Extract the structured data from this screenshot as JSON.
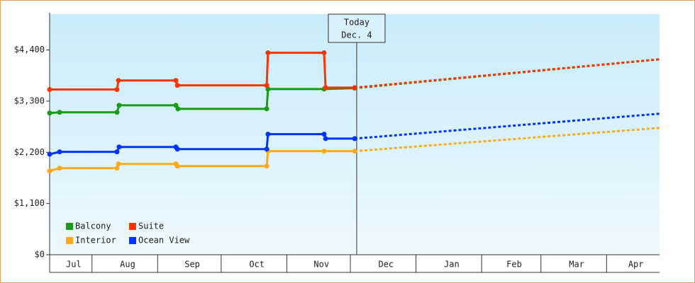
{
  "chart_data": {
    "type": "line",
    "xlim": [
      0,
      288
    ],
    "xticks": [
      {
        "value": 0,
        "label": "Jul"
      },
      {
        "value": 20,
        "label": "Aug"
      },
      {
        "value": 51,
        "label": "Sep"
      },
      {
        "value": 81,
        "label": "Oct"
      },
      {
        "value": 112,
        "label": "Nov"
      },
      {
        "value": 142,
        "label": "Dec"
      },
      {
        "value": 173,
        "label": "Jan"
      },
      {
        "value": 204,
        "label": "Feb"
      },
      {
        "value": 232,
        "label": "Mar"
      },
      {
        "value": 263,
        "label": "Apr"
      }
    ],
    "ylim": [
      0,
      5170
    ],
    "yticks": [
      {
        "value": 0,
        "label": "$0"
      },
      {
        "value": 1100,
        "label": "$1,100"
      },
      {
        "value": 2200,
        "label": "$2,200"
      },
      {
        "value": 3300,
        "label": "$3,300"
      },
      {
        "value": 4400,
        "label": "$4,400"
      }
    ],
    "today": {
      "x": 145,
      "lines": [
        "Today",
        "Dec. 4"
      ]
    },
    "legend": "bottom-left",
    "series": [
      {
        "name": "Balcony",
        "color": "#1a9a1a",
        "x": [
          0,
          4.7,
          31.8,
          32.8,
          59.6,
          60.6,
          102.5,
          103.1,
          129.6,
          144
        ],
        "values": [
          3045,
          3060,
          3060,
          3210,
          3210,
          3135,
          3135,
          3560,
          3560,
          3580
        ],
        "forecast_x": [
          144,
          288
        ],
        "forecast_values": [
          3580,
          4200
        ]
      },
      {
        "name": "Suite",
        "color": "#ff3300",
        "x": [
          0,
          31.8,
          32.5,
          59.6,
          60.3,
          102.5,
          103.1,
          129.6,
          130.3,
          144
        ],
        "values": [
          3550,
          3550,
          3745,
          3745,
          3640,
          3640,
          4340,
          4340,
          3590,
          3590
        ],
        "forecast_x": [
          144,
          288
        ],
        "forecast_values": [
          3590,
          4200
        ]
      },
      {
        "name": "Interior",
        "color": "#ffaa1a",
        "x": [
          0,
          4.7,
          31.8,
          32.5,
          59.6,
          60.3,
          102.5,
          103.1,
          129.6,
          144
        ],
        "values": [
          1800,
          1860,
          1860,
          1950,
          1950,
          1905,
          1905,
          2225,
          2225,
          2225
        ],
        "forecast_x": [
          144,
          288
        ],
        "forecast_values": [
          2225,
          2725
        ]
      },
      {
        "name": "Ocean View",
        "color": "#0033ff",
        "x": [
          0,
          4.7,
          31.8,
          32.8,
          59.6,
          60.3,
          102.5,
          103.1,
          129.6,
          130.3,
          144
        ],
        "values": [
          2160,
          2210,
          2210,
          2315,
          2315,
          2270,
          2270,
          2590,
          2590,
          2495,
          2495
        ],
        "forecast_x": [
          144,
          288
        ],
        "forecast_values": [
          2495,
          3030
        ]
      }
    ]
  }
}
